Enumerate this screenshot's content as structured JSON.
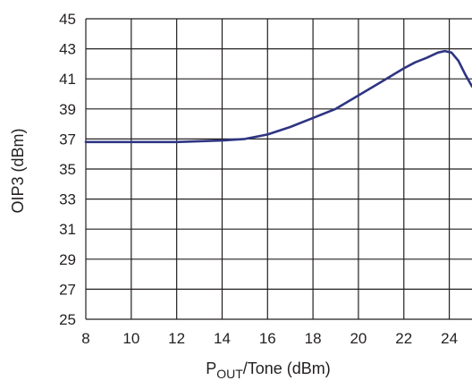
{
  "chart_data": {
    "type": "line",
    "title": "",
    "xlabel_main": "P",
    "xlabel_sub": "OUT",
    "xlabel_rest": "/Tone (dBm)",
    "ylabel": "OIP3 (dBm)",
    "xlim": [
      8,
      25
    ],
    "ylim": [
      25,
      45
    ],
    "x_ticks": [
      8,
      10,
      12,
      14,
      16,
      18,
      20,
      22,
      24
    ],
    "y_ticks": [
      25,
      27,
      29,
      31,
      33,
      35,
      37,
      39,
      41,
      43,
      45
    ],
    "x_grid": [
      8,
      10,
      12,
      14,
      16,
      18,
      20,
      22,
      24
    ],
    "y_grid": [
      25,
      27,
      29,
      31,
      33,
      35,
      37,
      39,
      41,
      43,
      45
    ],
    "grid": true,
    "line_color": "#2e3582",
    "grid_color": "#231f20",
    "series": [
      {
        "values": [
          [
            8.0,
            36.8
          ],
          [
            10.0,
            36.8
          ],
          [
            12.0,
            36.8
          ],
          [
            13.0,
            36.85
          ],
          [
            14.0,
            36.9
          ],
          [
            15.0,
            37.0
          ],
          [
            16.0,
            37.3
          ],
          [
            17.0,
            37.8
          ],
          [
            18.0,
            38.4
          ],
          [
            19.0,
            39.0
          ],
          [
            20.0,
            39.9
          ],
          [
            21.0,
            40.8
          ],
          [
            22.0,
            41.7
          ],
          [
            22.5,
            42.1
          ],
          [
            23.0,
            42.4
          ],
          [
            23.5,
            42.75
          ],
          [
            23.8,
            42.85
          ],
          [
            24.1,
            42.75
          ],
          [
            24.4,
            42.2
          ],
          [
            24.7,
            41.3
          ],
          [
            25.0,
            40.5
          ]
        ]
      }
    ]
  }
}
